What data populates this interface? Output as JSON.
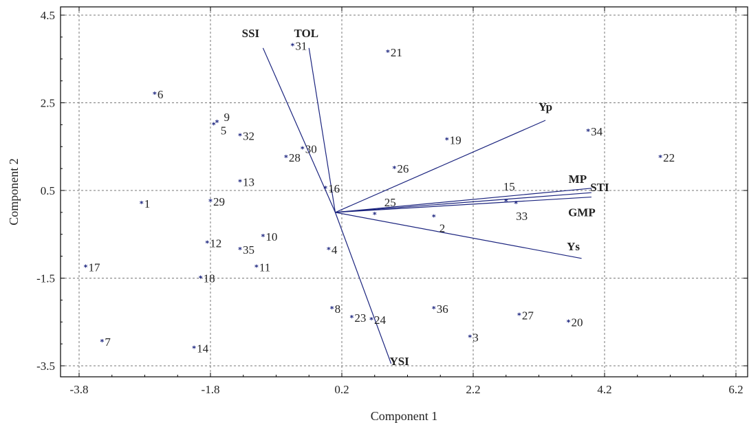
{
  "chart_data": {
    "type": "scatter",
    "subtype": "biplot",
    "title": "",
    "xlabel": "Component 1",
    "ylabel": "Component 2",
    "xlim": [
      -4.0,
      6.4
    ],
    "ylim": [
      -3.5,
      4.5
    ],
    "xticks": [
      -3.8,
      -1.8,
      0.2,
      2.2,
      4.2,
      6.2
    ],
    "yticks": [
      -3.5,
      -1.5,
      0.5,
      2.5,
      4.5
    ],
    "xtick_labels": [
      "-3.8",
      "-1.8",
      "0.2",
      "2.2",
      "4.2",
      "6.2"
    ],
    "ytick_labels": [
      "-3.5",
      "-1.5",
      "0.5",
      "2.5",
      "4.5"
    ],
    "grid": true,
    "colors": {
      "points": "#1a237e",
      "vectors": "#1a237e",
      "grid": "#777777",
      "frame": "#000000"
    },
    "points": [
      {
        "label": "1",
        "x": -2.85,
        "y": 0.2
      },
      {
        "label": "2",
        "x": 1.6,
        "y": -0.1
      },
      {
        "label": "3",
        "x": 2.15,
        "y": -2.85
      },
      {
        "label": "4",
        "x": 0.0,
        "y": -0.85
      },
      {
        "label": "5",
        "x": -1.75,
        "y": 2.0
      },
      {
        "label": "6",
        "x": -2.65,
        "y": 2.7
      },
      {
        "label": "7",
        "x": -3.45,
        "y": -2.95
      },
      {
        "label": "8",
        "x": 0.05,
        "y": -2.2
      },
      {
        "label": "9",
        "x": -1.7,
        "y": 2.05
      },
      {
        "label": "10",
        "x": -1.0,
        "y": -0.55
      },
      {
        "label": "11",
        "x": -1.1,
        "y": -1.25
      },
      {
        "label": "12",
        "x": -1.85,
        "y": -0.7
      },
      {
        "label": "13",
        "x": -1.35,
        "y": 0.7
      },
      {
        "label": "14",
        "x": -2.05,
        "y": -3.1
      },
      {
        "label": "15",
        "x": 2.7,
        "y": 0.25
      },
      {
        "label": "16",
        "x": -0.05,
        "y": 0.55
      },
      {
        "label": "17",
        "x": -3.7,
        "y": -1.25
      },
      {
        "label": "18",
        "x": -1.95,
        "y": -1.5
      },
      {
        "label": "19",
        "x": 1.8,
        "y": 1.65
      },
      {
        "label": "20",
        "x": 3.65,
        "y": -2.5
      },
      {
        "label": "21",
        "x": 0.9,
        "y": 3.65
      },
      {
        "label": "22",
        "x": 5.05,
        "y": 1.25
      },
      {
        "label": "23",
        "x": 0.35,
        "y": -2.4
      },
      {
        "label": "24",
        "x": 0.65,
        "y": -2.45
      },
      {
        "label": "25",
        "x": 0.7,
        "y": -0.05
      },
      {
        "label": "26",
        "x": 1.0,
        "y": 1.0
      },
      {
        "label": "27",
        "x": 2.9,
        "y": -2.35
      },
      {
        "label": "28",
        "x": -0.65,
        "y": 1.25
      },
      {
        "label": "29",
        "x": -1.8,
        "y": 0.25
      },
      {
        "label": "30",
        "x": -0.4,
        "y": 1.45
      },
      {
        "label": "31",
        "x": -0.55,
        "y": 3.8
      },
      {
        "label": "32",
        "x": -1.35,
        "y": 1.75
      },
      {
        "label": "33",
        "x": 2.85,
        "y": 0.2
      },
      {
        "label": "34",
        "x": 3.95,
        "y": 1.85
      },
      {
        "label": "35",
        "x": -1.35,
        "y": -0.85
      },
      {
        "label": "36",
        "x": 1.6,
        "y": -2.2
      }
    ],
    "vectors": [
      {
        "label": "SSI",
        "x": -1.0,
        "y": 3.75
      },
      {
        "label": "TOL",
        "x": -0.3,
        "y": 3.75
      },
      {
        "label": "Yp",
        "x": 3.3,
        "y": 2.1
      },
      {
        "label": "MP",
        "x": 4.0,
        "y": 0.55
      },
      {
        "label": "STI",
        "x": 4.0,
        "y": 0.45
      },
      {
        "label": "GMP",
        "x": 4.0,
        "y": 0.35
      },
      {
        "label": "Ys",
        "x": 3.85,
        "y": -1.05
      },
      {
        "label": "YSI",
        "x": 0.95,
        "y": -3.45
      }
    ],
    "vector_origin": {
      "x": 0.1,
      "y": 0.0
    }
  }
}
